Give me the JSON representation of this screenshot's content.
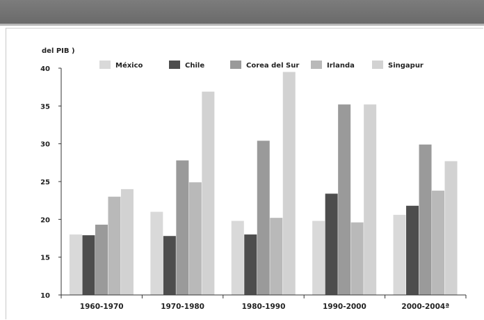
{
  "chart_data": {
    "type": "bar",
    "title": "",
    "ylabel": "del PIB )",
    "xlabel": "",
    "ylim": [
      10,
      40
    ],
    "yticks": [
      10,
      15,
      20,
      25,
      30,
      35,
      40
    ],
    "ytick_labels": [
      "10",
      "15",
      "20",
      "25",
      "30",
      "35",
      "40"
    ],
    "legend_position": "top",
    "grid": false,
    "categories": [
      "1960-1970",
      "1970-1980",
      "1980-1990",
      "1990-2000",
      "2000-2004ª"
    ],
    "series": [
      {
        "name": "México",
        "color": "#d9d9d9",
        "values": [
          18.0,
          21.0,
          19.8,
          19.8,
          20.6
        ]
      },
      {
        "name": "Chile",
        "color": "#4d4d4d",
        "values": [
          17.9,
          17.8,
          18.0,
          23.4,
          21.8
        ]
      },
      {
        "name": "Corea del Sur",
        "color": "#9a9a9a",
        "values": [
          19.3,
          27.8,
          30.4,
          35.2,
          29.9
        ]
      },
      {
        "name": "Irlanda",
        "color": "#b9b9b9",
        "values": [
          23.0,
          24.9,
          20.2,
          19.6,
          23.8
        ]
      },
      {
        "name": "Singapur",
        "color": "#d2d2d2",
        "values": [
          24.0,
          36.9,
          39.5,
          35.2,
          27.7
        ]
      }
    ]
  }
}
